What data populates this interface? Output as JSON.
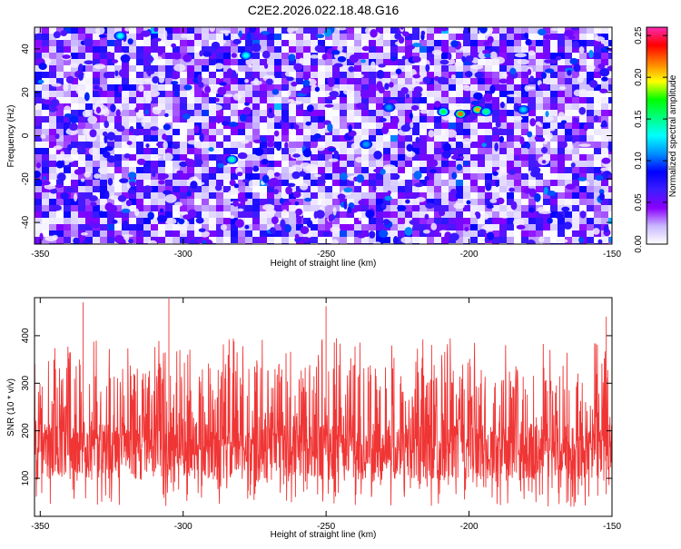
{
  "figure": {
    "title": "C2E2.2026.022.18.48.G16"
  },
  "chart_data": [
    {
      "type": "heatmap",
      "title": "C2E2.2026.022.18.48.G16",
      "xlabel": "Height of straight line (km)",
      "ylabel": "Frequency (Hz)",
      "xlim": [
        -352,
        -150
      ],
      "ylim": [
        -50,
        50
      ],
      "xticks": [
        -350,
        -300,
        -250,
        -200,
        -150
      ],
      "yticks": [
        -40,
        -20,
        0,
        20,
        40
      ],
      "colorbar": {
        "label": "Normalized spectral amplitude",
        "range": [
          0,
          0.26
        ],
        "ticks": [
          "0.00",
          "0.05",
          "0.10",
          "0.15",
          "0.20",
          "0.25"
        ],
        "tick_values": [
          0,
          0.05,
          0.1,
          0.15,
          0.2,
          0.25
        ],
        "colors": [
          "#ffffff",
          "#c9b8ff",
          "#8a00ff",
          "#3c1cff",
          "#0000ff",
          "#0090ff",
          "#00ffff",
          "#00ff80",
          "#00ff00",
          "#ffff00",
          "#ff8000",
          "#ff0000",
          "#ff2ab0"
        ]
      },
      "hotspots": [
        {
          "x": -203,
          "y": 10,
          "value": 0.22
        },
        {
          "x": -197,
          "y": 12,
          "value": 0.21
        },
        {
          "x": -209,
          "y": 11,
          "value": 0.16
        },
        {
          "x": -194,
          "y": 11,
          "value": 0.15
        },
        {
          "x": -283,
          "y": -11,
          "value": 0.14
        },
        {
          "x": -322,
          "y": 46,
          "value": 0.13
        },
        {
          "x": -278,
          "y": 37,
          "value": 0.13
        },
        {
          "x": -181,
          "y": 12,
          "value": 0.12
        },
        {
          "x": -228,
          "y": 13,
          "value": 0.11
        },
        {
          "x": -236,
          "y": -4,
          "value": 0.11
        }
      ]
    },
    {
      "type": "line",
      "xlabel": "Height of straight line (km)",
      "ylabel": "SNR (10 * v/v)",
      "xlim": [
        -352,
        -150
      ],
      "ylim": [
        20,
        480
      ],
      "xticks": [
        -350,
        -300,
        -250,
        -200,
        -150
      ],
      "yticks": [
        100,
        200,
        300,
        400
      ],
      "series_color": "#f03535",
      "series": [
        {
          "name": "SNR",
          "baseline": 155,
          "typical_min": 40,
          "typical_max": 340,
          "peaks": [
            {
              "x": -335,
              "y": 470
            },
            {
              "x": -305,
              "y": 478
            },
            {
              "x": -250,
              "y": 462
            },
            {
              "x": -152,
              "y": 440
            }
          ]
        }
      ]
    }
  ]
}
